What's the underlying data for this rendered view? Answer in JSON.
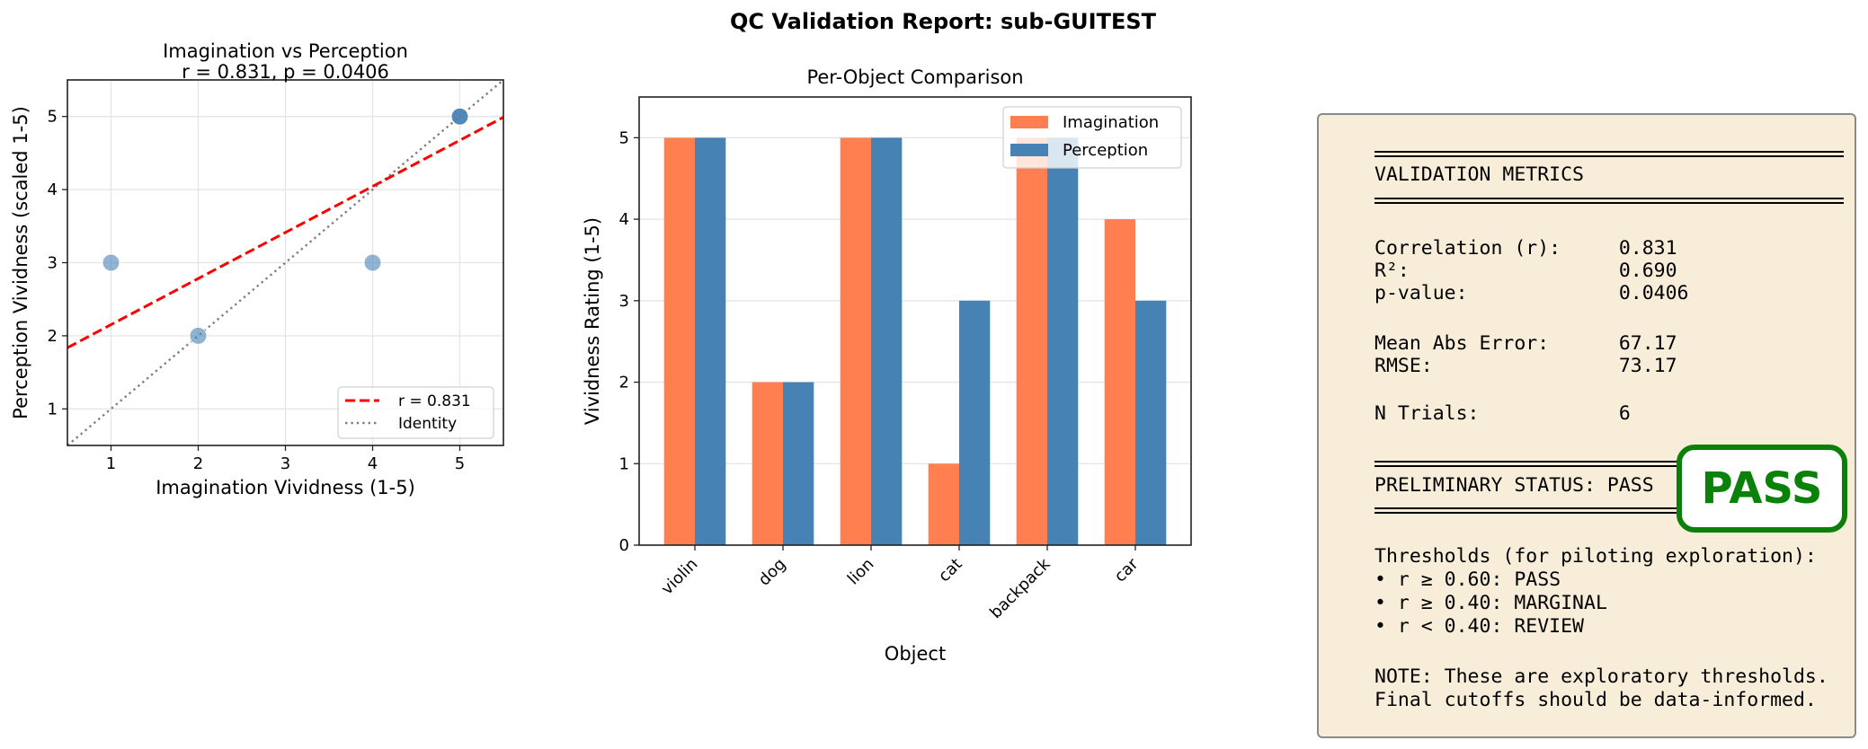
{
  "suptitle": "QC Validation Report: sub-GUITEST",
  "chart_data": [
    {
      "type": "scatter",
      "title": "Imagination vs Perception\nr = 0.831, p = 0.0406",
      "title_lines": [
        "Imagination vs Perception",
        "r = 0.831, p = 0.0406"
      ],
      "xlabel": "Imagination Vividness (1-5)",
      "ylabel": "Perception Vividness (scaled 1-5)",
      "xlim": [
        0.5,
        5.5
      ],
      "ylim": [
        0.5,
        5.5
      ],
      "xticks": [
        "1",
        "2",
        "3",
        "4",
        "5"
      ],
      "yticks": [
        "1",
        "2",
        "3",
        "4",
        "5"
      ],
      "grid": true,
      "points": {
        "x": [
          5,
          2,
          5,
          1,
          5,
          4
        ],
        "y": [
          5,
          2,
          5,
          3,
          5,
          3
        ]
      },
      "lines": [
        {
          "name": "r = 0.831",
          "style": "dashed",
          "color": "#ff0000",
          "kind": "linear fit"
        },
        {
          "name": "Identity",
          "style": "dotted",
          "color": "#808080",
          "kind": "y = x"
        }
      ],
      "legend": "lower-right",
      "point_color": "#4682b4"
    },
    {
      "type": "bar",
      "title": "Per-Object Comparison",
      "xlabel": "Object",
      "ylabel": "Vividness Rating (1-5)",
      "categories": [
        "violin",
        "dog",
        "lion",
        "cat",
        "backpack",
        "car"
      ],
      "series": [
        {
          "name": "Imagination",
          "values": [
            5,
            2,
            5,
            1,
            5,
            4
          ],
          "color": "#ff7f50"
        },
        {
          "name": "Perception",
          "values": [
            5,
            2,
            5,
            3,
            5,
            3
          ],
          "color": "#4682b4"
        }
      ],
      "ylim": [
        0,
        5.5
      ],
      "yticks": [
        "0",
        "1",
        "2",
        "3",
        "4",
        "5"
      ],
      "grid": "y",
      "legend": "top-right"
    }
  ],
  "panel": {
    "header": "VALIDATION METRICS",
    "metrics": [
      {
        "label": "Correlation (r):",
        "value": "0.831"
      },
      {
        "label": "R²:",
        "value": "0.690"
      },
      {
        "label": "p-value:",
        "value": "0.0406"
      },
      {
        "label": "Mean Abs Error:",
        "value": "67.17"
      },
      {
        "label": "RMSE:",
        "value": "73.17"
      },
      {
        "label": "N Trials:",
        "value": "6"
      }
    ],
    "status_line": "PRELIMINARY STATUS: PASS",
    "thresholds_title": "Thresholds (for piloting exploration):",
    "thresholds": [
      "• r ≥ 0.60: PASS",
      "• r ≥ 0.40: MARGINAL",
      "• r < 0.40: REVIEW"
    ],
    "note": [
      "NOTE: These are exploratory thresholds.",
      "Final cutoffs should be data-informed."
    ],
    "badge": "PASS",
    "badge_color": "#008000"
  }
}
